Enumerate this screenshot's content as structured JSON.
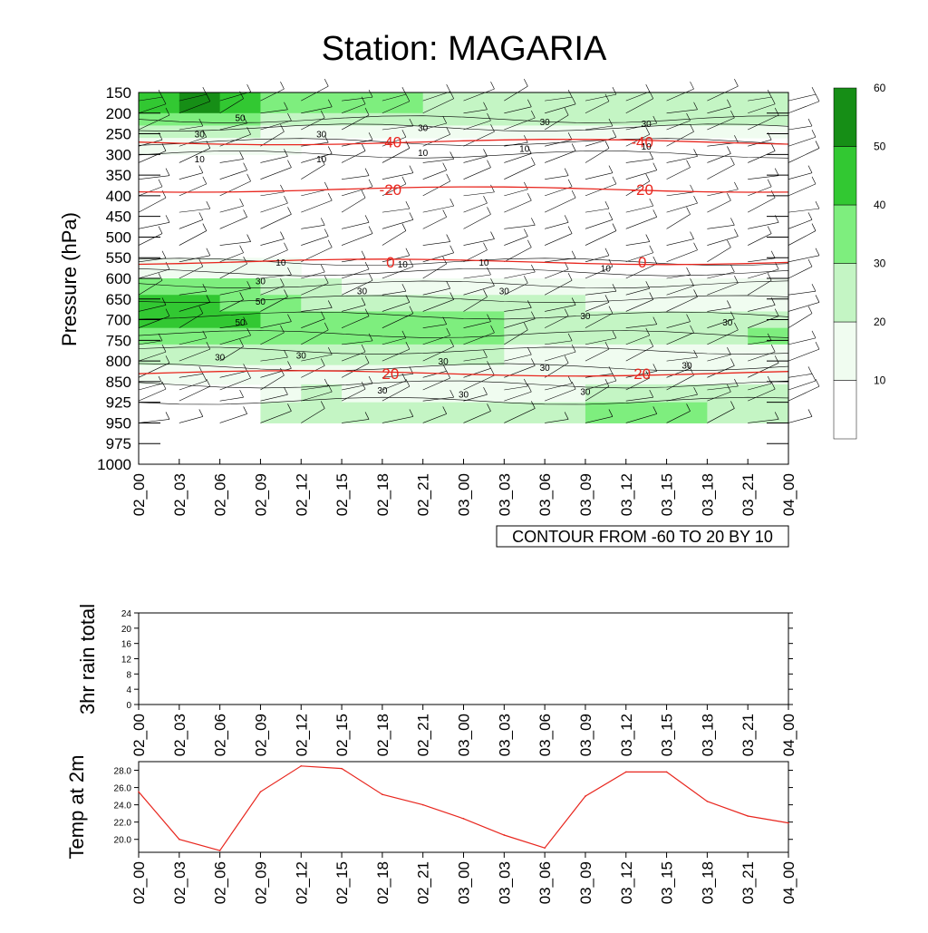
{
  "title": "Station: MAGARIA",
  "colors": {
    "contour_line": "#e8261e",
    "temp_line": "#e8261e",
    "shade": [
      "#ffffff",
      "#f0fcf0",
      "#c4f5c4",
      "#7eee7e",
      "#32c832",
      "#168e16"
    ]
  },
  "time_labels": [
    "02_00",
    "02_03",
    "02_06",
    "02_09",
    "02_12",
    "02_15",
    "02_18",
    "02_21",
    "03_00",
    "03_03",
    "03_06",
    "03_09",
    "03_12",
    "03_15",
    "03_18",
    "03_21",
    "04_00"
  ],
  "chart_data": [
    {
      "type": "heatmap",
      "name": "main",
      "ylabel": "Pressure (hPa)",
      "pressure_levels": [
        150,
        200,
        250,
        300,
        350,
        400,
        450,
        500,
        550,
        600,
        650,
        700,
        750,
        800,
        850,
        925,
        950,
        975,
        1000
      ],
      "info_label": "CONTOUR FROM -60 TO 20 BY 10",
      "wind_speed_levels": [
        10,
        20,
        30,
        40,
        50,
        60
      ],
      "colorbar_labels": [
        "10",
        "20",
        "30",
        "40",
        "50",
        "60"
      ],
      "wind_speed_contour_labels": [
        "50",
        "30",
        "30",
        "30",
        "30",
        "30",
        "10",
        "10",
        "10",
        "10",
        "10",
        "10",
        "10",
        "10",
        "10",
        "30",
        "30",
        "30",
        "50",
        "50",
        "30",
        "30",
        "30",
        "30",
        "30",
        "30",
        "30",
        "30",
        "30",
        "30"
      ],
      "temperature_contours": [
        {
          "label": "-40",
          "level": "270"
        },
        {
          "label": "-20",
          "level": "385"
        },
        {
          "label": "0",
          "level": "560"
        },
        {
          "label": "20",
          "level": "830"
        }
      ]
    },
    {
      "type": "line",
      "name": "rain",
      "ylabel": "3hr rain total",
      "ylim": [
        0,
        24
      ],
      "yticks": [
        "0",
        "4",
        "8",
        "12",
        "16",
        "20",
        "24"
      ],
      "values": []
    },
    {
      "type": "line",
      "name": "temp",
      "ylabel": "Temp at 2m",
      "ylim": [
        18.5,
        29.0
      ],
      "yticks": [
        "20.0",
        "22.0",
        "24.0",
        "26.0",
        "28.0"
      ],
      "x": [
        "02_00",
        "02_03",
        "02_06",
        "02_09",
        "02_12",
        "02_15",
        "02_18",
        "02_21",
        "03_00",
        "03_03",
        "03_06",
        "03_09",
        "03_12",
        "03_15",
        "03_18",
        "03_21",
        "04_00"
      ],
      "values": [
        25.5,
        20.0,
        18.7,
        25.5,
        28.5,
        28.2,
        25.2,
        24.0,
        22.4,
        20.5,
        19.0,
        25.0,
        27.8,
        27.8,
        24.4,
        22.7,
        21.9
      ]
    }
  ]
}
